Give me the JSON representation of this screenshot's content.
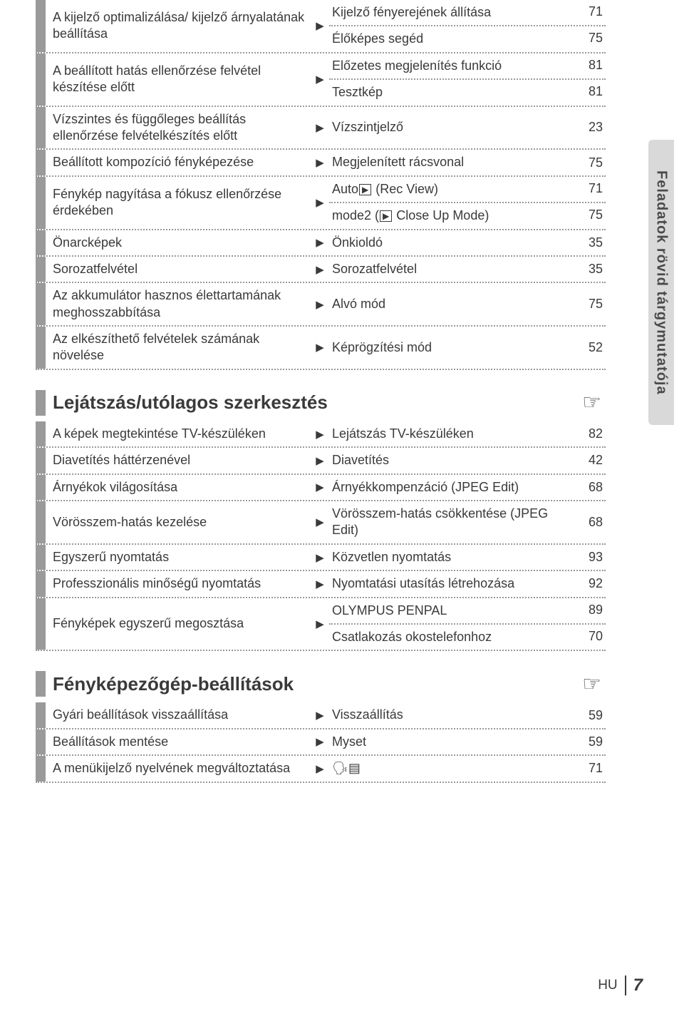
{
  "side_tab": "Feladatok rövid tárgymutatója",
  "footer": {
    "lang": "HU",
    "page": "7"
  },
  "section_headings": {
    "playback": "Lejátszás/utólagos szerkesztés",
    "settings": "Fényképezőgép-beállítások"
  },
  "block1": {
    "rows": [
      {
        "left": "A kijelző optimalizálása/ kijelző árnyalatának beállítása",
        "right_multi": [
          {
            "text": "Kijelző fényerejének állítása",
            "page": "71"
          },
          {
            "text": "Élőképes segéd",
            "page": "75"
          }
        ]
      },
      {
        "left": "A beállított hatás ellenőrzése felvétel készítése előtt",
        "right_multi": [
          {
            "text": "Előzetes megjelenítés funkció",
            "page": "81"
          },
          {
            "text": "Tesztkép",
            "page": "81"
          }
        ]
      },
      {
        "left": "Vízszintes és függőleges beállítás ellenőrzése felvételkészítés előtt",
        "right": "Vízszintjelző",
        "page": "23"
      },
      {
        "left": "Beállított kompozíció fényképezése",
        "right": "Megjelenített rácsvonal",
        "page": "75"
      },
      {
        "left": "Fénykép nagyítása a fókusz ellenőrzése érdekében",
        "right_multi": [
          {
            "html": "Auto<span class=\"inline-icon\">▶</span> (Rec View)",
            "page": "71"
          },
          {
            "html": "mode2 (<span class=\"inline-icon\">▶</span> Close Up Mode)",
            "page": "75"
          }
        ]
      },
      {
        "left": "Önarcképek",
        "right": "Önkioldó",
        "page": "35"
      },
      {
        "left": "Sorozatfelvétel",
        "right": "Sorozatfelvétel",
        "page": "35"
      },
      {
        "left": "Az akkumulátor hasznos élettartamának meghosszabbítása",
        "right": "Alvó mód",
        "page": "75"
      },
      {
        "left": "Az elkészíthető felvételek számának növelése",
        "right": "Képrögzítési mód",
        "page": "52"
      }
    ]
  },
  "block2": {
    "rows": [
      {
        "left": "A képek megtekintése TV-készüléken",
        "right": "Lejátszás TV-készüléken",
        "page": "82"
      },
      {
        "left": "Diavetítés háttérzenével",
        "right": "Diavetítés",
        "page": "42"
      },
      {
        "left": "Árnyékok világosítása",
        "right": "Árnyékkompenzáció (JPEG Edit)",
        "page": "68"
      },
      {
        "left": "Vörösszem-hatás kezelése",
        "right": "Vörösszem-hatás csökkentése (JPEG Edit)",
        "page": "68"
      },
      {
        "left": "Egyszerű nyomtatás",
        "right": "Közvetlen nyomtatás",
        "page": "93"
      },
      {
        "left": "Professzionális minőségű nyomtatás",
        "right": "Nyomtatási utasítás létrehozása",
        "page": "92"
      },
      {
        "left": "Fényképek egyszerű megosztása",
        "right_multi": [
          {
            "text": "OLYMPUS PENPAL",
            "page": "89"
          },
          {
            "text": "Csatlakozás okostelefonhoz",
            "page": "70"
          }
        ]
      }
    ]
  },
  "block3": {
    "rows": [
      {
        "left": "Gyári beállítások visszaállítása",
        "right": "Visszaállítás",
        "page": "59"
      },
      {
        "left": "Beállítások mentése",
        "right": "Myset",
        "page": "59"
      },
      {
        "left": "A menükijelző nyelvének megváltoztatása",
        "right_html": "&#128483;&#8203;&#9636;",
        "page": "71"
      }
    ]
  }
}
